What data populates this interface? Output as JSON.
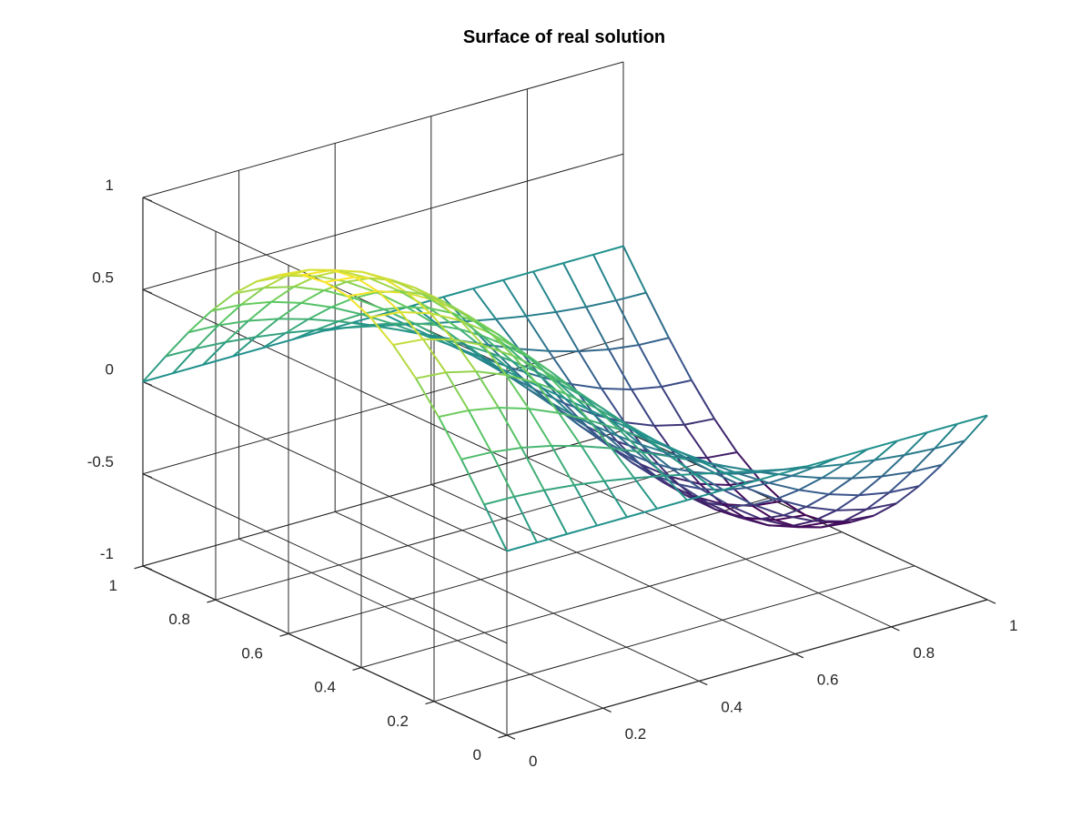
{
  "chart_data": {
    "type": "surface",
    "title": "Surface of real solution",
    "xlabel": "",
    "ylabel": "",
    "zlabel": "",
    "xlim": [
      0,
      1
    ],
    "ylim": [
      0,
      1
    ],
    "zlim": [
      -1,
      1
    ],
    "x_ticks": [
      0,
      0.2,
      0.4,
      0.6,
      0.8,
      1
    ],
    "x_tick_labels": [
      "0",
      "0.2",
      "0.4",
      "0.6",
      "0.8",
      "1"
    ],
    "y_ticks": [
      0,
      0.2,
      0.4,
      0.6,
      0.8,
      1
    ],
    "y_tick_labels": [
      "0",
      "0.2",
      "0.4",
      "0.6",
      "0.8",
      "1"
    ],
    "z_ticks": [
      -1,
      -0.5,
      0,
      0.5,
      1
    ],
    "z_tick_labels": [
      "-1",
      "-0.5",
      "0",
      "0.5",
      "1"
    ],
    "grid": true,
    "colormap": "viridis",
    "colormap_stops": [
      "#440154",
      "#3b528b",
      "#21918c",
      "#5ec962",
      "#fde725"
    ],
    "mesh_resolution": 16,
    "function": "z = sin(pi*y) * cos(pi*x)",
    "grid_values": [
      [
        0.0,
        0.1951,
        0.3827,
        0.5556,
        0.7071,
        0.8315,
        0.9239,
        0.9808,
        1.0,
        0.9808,
        0.9239,
        0.8315,
        0.7071,
        0.5556,
        0.3827,
        0.1951,
        0.0
      ],
      [
        0.0,
        0.1913,
        0.3753,
        0.5449,
        0.6935,
        0.8155,
        0.9061,
        0.9619,
        0.9808,
        0.9619,
        0.9061,
        0.8155,
        0.6935,
        0.5449,
        0.3753,
        0.1913,
        0.0
      ],
      [
        0.0,
        0.1802,
        0.3536,
        0.5133,
        0.6533,
        0.7682,
        0.8536,
        0.9061,
        0.9239,
        0.9061,
        0.8536,
        0.7682,
        0.6533,
        0.5133,
        0.3536,
        0.1802,
        0.0
      ],
      [
        0.0,
        0.1622,
        0.3182,
        0.4619,
        0.5879,
        0.6913,
        0.7682,
        0.8155,
        0.8315,
        0.8155,
        0.7682,
        0.6913,
        0.5879,
        0.4619,
        0.3182,
        0.1622,
        0.0
      ],
      [
        0.0,
        0.138,
        0.2706,
        0.3928,
        0.5,
        0.5879,
        0.6533,
        0.6935,
        0.7071,
        0.6935,
        0.6533,
        0.5879,
        0.5,
        0.3928,
        0.2706,
        0.138,
        0.0
      ],
      [
        0.0,
        0.1084,
        0.2126,
        0.3087,
        0.3928,
        0.4619,
        0.5133,
        0.5449,
        0.5556,
        0.5449,
        0.5133,
        0.4619,
        0.3928,
        0.3087,
        0.2126,
        0.1084,
        0.0
      ],
      [
        0.0,
        0.0747,
        0.1464,
        0.2126,
        0.2706,
        0.3182,
        0.3536,
        0.3753,
        0.3827,
        0.3753,
        0.3536,
        0.3182,
        0.2706,
        0.2126,
        0.1464,
        0.0747,
        0.0
      ],
      [
        0.0,
        0.0381,
        0.0747,
        0.1084,
        0.138,
        0.1622,
        0.1802,
        0.1913,
        0.1951,
        0.1913,
        0.1802,
        0.1622,
        0.138,
        0.1084,
        0.0747,
        0.0381,
        0.0
      ],
      [
        0.0,
        0.0,
        0.0,
        0.0,
        0.0,
        0.0,
        0.0,
        0.0,
        0.0,
        0.0,
        0.0,
        0.0,
        0.0,
        0.0,
        0.0,
        0.0,
        0.0
      ],
      [
        0.0,
        -0.0381,
        -0.0747,
        -0.1084,
        -0.138,
        -0.1622,
        -0.1802,
        -0.1913,
        -0.1951,
        -0.1913,
        -0.1802,
        -0.1622,
        -0.138,
        -0.1084,
        -0.0747,
        -0.0381,
        0.0
      ],
      [
        0.0,
        -0.0747,
        -0.1464,
        -0.2126,
        -0.2706,
        -0.3182,
        -0.3536,
        -0.3753,
        -0.3827,
        -0.3753,
        -0.3536,
        -0.3182,
        -0.2706,
        -0.2126,
        -0.1464,
        -0.0747,
        0.0
      ],
      [
        0.0,
        -0.1084,
        -0.2126,
        -0.3087,
        -0.3928,
        -0.4619,
        -0.5133,
        -0.5449,
        -0.5556,
        -0.5449,
        -0.5133,
        -0.4619,
        -0.3928,
        -0.3087,
        -0.2126,
        -0.1084,
        0.0
      ],
      [
        0.0,
        -0.138,
        -0.2706,
        -0.3928,
        -0.5,
        -0.5879,
        -0.6533,
        -0.6935,
        -0.7071,
        -0.6935,
        -0.6533,
        -0.5879,
        -0.5,
        -0.3928,
        -0.2706,
        -0.138,
        0.0
      ],
      [
        0.0,
        -0.1622,
        -0.3182,
        -0.4619,
        -0.5879,
        -0.6913,
        -0.7682,
        -0.8155,
        -0.8315,
        -0.8155,
        -0.7682,
        -0.6913,
        -0.5879,
        -0.4619,
        -0.3182,
        -0.1622,
        0.0
      ],
      [
        0.0,
        -0.1802,
        -0.3536,
        -0.5133,
        -0.6533,
        -0.7682,
        -0.8536,
        -0.9061,
        -0.9239,
        -0.9061,
        -0.8536,
        -0.7682,
        -0.6533,
        -0.5133,
        -0.3536,
        -0.1802,
        0.0
      ],
      [
        0.0,
        -0.1913,
        -0.3753,
        -0.5449,
        -0.6935,
        -0.8155,
        -0.9061,
        -0.9619,
        -0.9808,
        -0.9619,
        -0.9061,
        -0.8155,
        -0.6935,
        -0.5449,
        -0.3753,
        -0.1913,
        0.0
      ],
      [
        0.0,
        -0.1951,
        -0.3827,
        -0.5556,
        -0.7071,
        -0.8315,
        -0.9239,
        -0.9808,
        -1.0,
        -0.9808,
        -0.9239,
        -0.8315,
        -0.7071,
        -0.5556,
        -0.3827,
        -0.1951,
        0.0
      ]
    ]
  }
}
